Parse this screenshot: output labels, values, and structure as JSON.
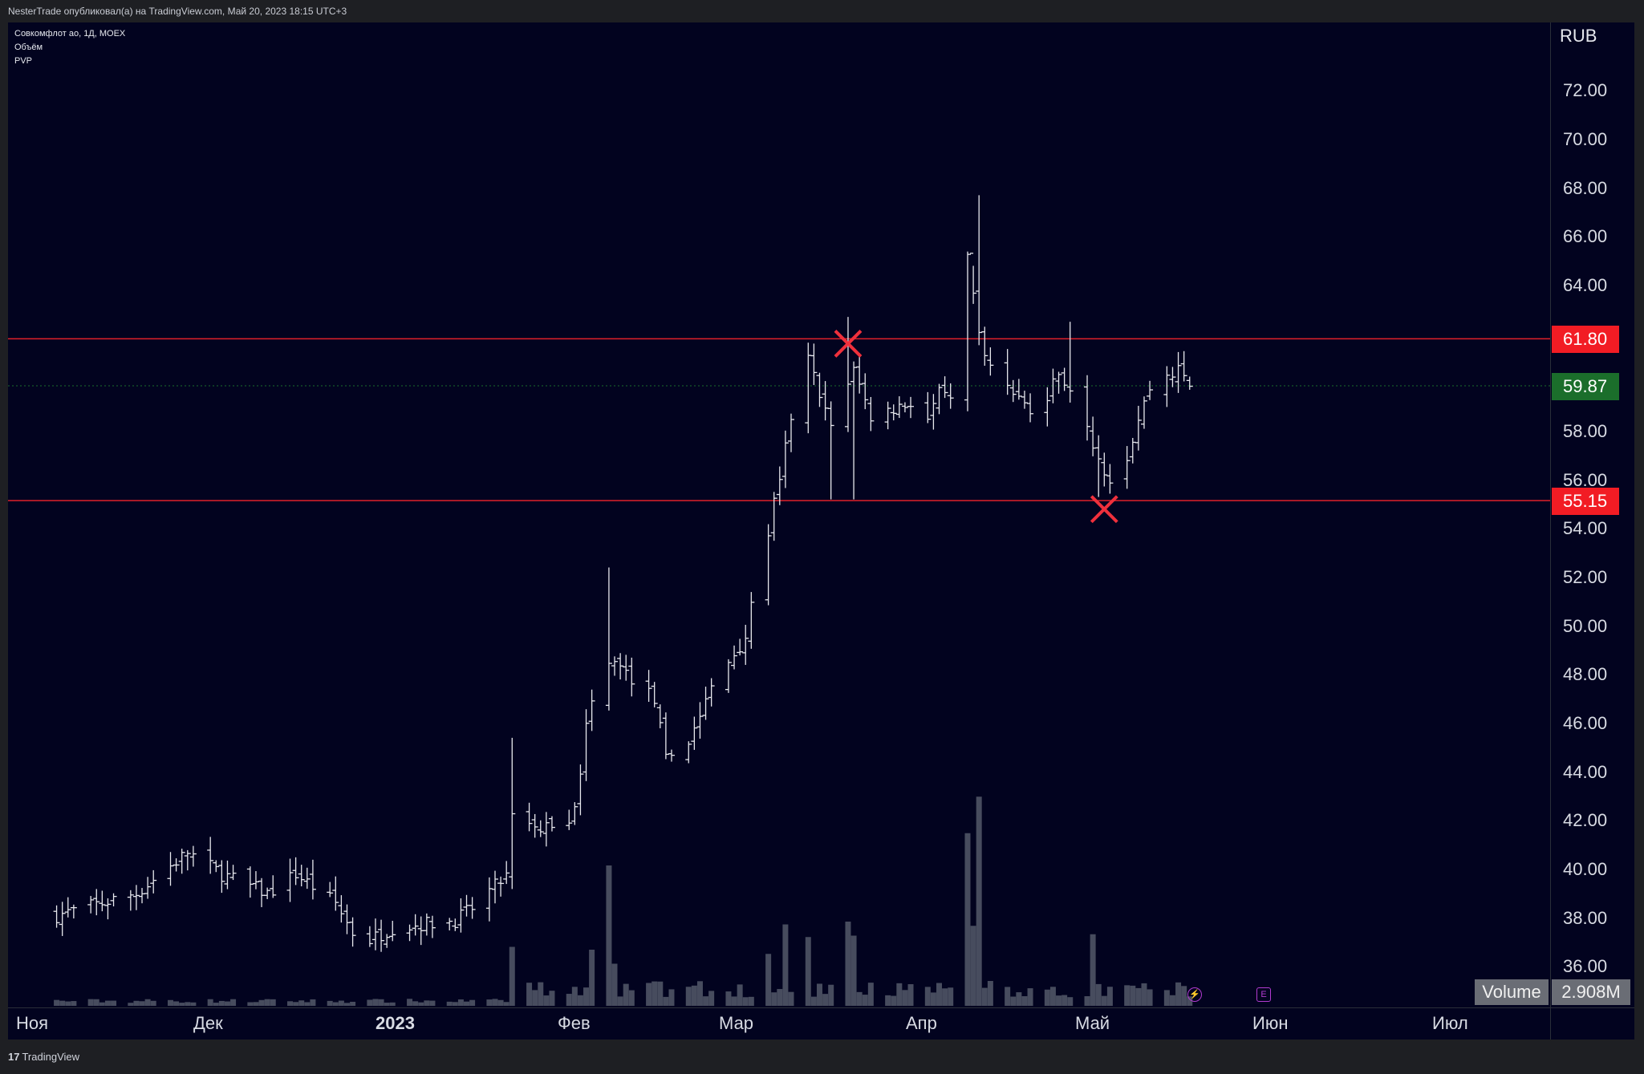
{
  "header": {
    "text": "NesterTrade опубликовал(а) на TradingView.com, Май 20, 2023 18:15 UTC+3"
  },
  "legend": {
    "symbol": "Совкомфлот ао, 1Д, MOEX",
    "indicator1": "Объём",
    "indicator2": "PVP"
  },
  "currency": "RUB",
  "price_ticks": [
    "72.00",
    "70.00",
    "68.00",
    "66.00",
    "64.00",
    "58.00",
    "56.00",
    "54.00",
    "52.00",
    "50.00",
    "48.00",
    "46.00",
    "44.00",
    "42.00",
    "40.00",
    "38.00",
    "36.00"
  ],
  "price_tags": {
    "resistance": "61.80",
    "last": "59.87",
    "support": "55.15"
  },
  "time_labels": [
    "Ноя",
    "Дек",
    "2023",
    "Фев",
    "Мар",
    "Апр",
    "Май",
    "Июн",
    "Июл"
  ],
  "volume": {
    "label": "Volume",
    "value": "2.908M"
  },
  "events": {
    "lightning": "⚡",
    "earnings": "E"
  },
  "footer": {
    "brand": "TradingView",
    "logo": "17"
  },
  "colors": {
    "background": "#02031f",
    "bars": "#e8e9ee",
    "volume": "#474c5e",
    "level_line": "#e0202a",
    "marker": "#f0303c",
    "last_tag": "#1b6e2b",
    "level_tag": "#f21c24"
  },
  "chart_data": {
    "type": "ohlc",
    "symbol": "Совкомфлот ао",
    "interval": "1Д",
    "exchange": "MOEX",
    "y_unit": "RUB",
    "ylim": [
      35.3,
      73.2
    ],
    "grid": false,
    "x_ticks": [
      "Ноя",
      "Дек",
      "2023",
      "Фев",
      "Мар",
      "Апр",
      "Май",
      "Июн",
      "Июл"
    ],
    "horizontal_levels": [
      61.8,
      55.15
    ],
    "last_price": 59.87,
    "markers": [
      {
        "type": "cross",
        "date": "2023-03-20",
        "price": 61.6
      },
      {
        "type": "cross",
        "date": "2023-05-04",
        "price": 54.8
      }
    ],
    "anchors": [
      [
        "2022-11-01",
        38.1
      ],
      [
        "2022-11-15",
        39.0
      ],
      [
        "2022-11-24",
        40.7
      ],
      [
        "2022-11-30",
        39.8
      ],
      [
        "2022-12-08",
        39.0
      ],
      [
        "2022-12-13",
        39.8
      ],
      [
        "2022-12-20",
        38.6
      ],
      [
        "2022-12-23",
        37.4
      ],
      [
        "2022-12-26",
        37.1
      ],
      [
        "2022-12-30",
        37.6
      ],
      [
        "2023-01-10",
        37.9
      ],
      [
        "2023-01-13",
        38.4
      ],
      [
        "2023-01-16",
        39.1
      ],
      [
        "2023-01-19",
        39.7
      ],
      [
        "2023-01-20",
        42.1
      ],
      [
        "2023-01-25",
        41.6
      ],
      [
        "2023-01-31",
        42.3
      ],
      [
        "2023-02-02",
        46.1
      ],
      [
        "2023-02-06",
        48.7
      ],
      [
        "2023-02-14",
        47.0
      ],
      [
        "2023-02-16",
        44.5
      ],
      [
        "2023-02-20",
        45.3
      ],
      [
        "2023-02-24",
        47.4
      ],
      [
        "2023-03-02",
        49.6
      ],
      [
        "2023-03-06",
        53.9
      ],
      [
        "2023-03-09",
        57.3
      ],
      [
        "2023-03-13",
        60.9
      ],
      [
        "2023-03-17",
        58.2
      ],
      [
        "2023-03-21",
        60.5
      ],
      [
        "2023-03-24",
        58.6
      ],
      [
        "2023-03-31",
        59.2
      ],
      [
        "2023-04-03",
        58.5
      ],
      [
        "2023-04-05",
        59.5
      ],
      [
        "2023-04-07",
        59.2
      ],
      [
        "2023-04-10",
        65.0
      ],
      [
        "2023-04-13",
        61.0
      ],
      [
        "2023-04-17",
        60.0
      ],
      [
        "2023-04-21",
        58.8
      ],
      [
        "2023-04-24",
        59.3
      ],
      [
        "2023-04-26",
        60.6
      ],
      [
        "2023-04-28",
        59.5
      ],
      [
        "2023-05-03",
        57.0
      ],
      [
        "2023-05-05",
        56.0
      ],
      [
        "2023-05-08",
        57.0
      ],
      [
        "2023-05-10",
        58.5
      ],
      [
        "2023-05-12",
        59.8
      ],
      [
        "2023-05-15",
        60.3
      ],
      [
        "2023-05-17",
        60.5
      ],
      [
        "2023-05-19",
        59.87
      ]
    ],
    "spikes": [
      {
        "date": "2023-01-20",
        "high": 45.4
      },
      {
        "date": "2023-02-06",
        "high": 52.4
      },
      {
        "date": "2023-03-17",
        "low": 55.2
      },
      {
        "date": "2023-03-20",
        "high": 62.7
      },
      {
        "date": "2023-03-21",
        "low": 55.2
      },
      {
        "date": "2023-04-11",
        "high": 64.8
      },
      {
        "date": "2023-04-12",
        "high": 67.7
      },
      {
        "date": "2023-04-28",
        "high": 62.5
      },
      {
        "date": "2023-05-03",
        "low": 55.3
      },
      {
        "date": "2023-12-26",
        "low": 35.6
      }
    ],
    "volume_peaks": [
      {
        "date": "2023-01-20",
        "value": 0.42
      },
      {
        "date": "2023-02-03",
        "value": 0.4
      },
      {
        "date": "2023-02-06",
        "value": 1.0
      },
      {
        "date": "2023-02-07",
        "value": 0.3
      },
      {
        "date": "2023-03-06",
        "value": 0.37
      },
      {
        "date": "2023-03-09",
        "value": 0.58
      },
      {
        "date": "2023-03-13",
        "value": 0.49
      },
      {
        "date": "2023-03-20",
        "value": 0.6
      },
      {
        "date": "2023-03-21",
        "value": 0.5
      },
      {
        "date": "2023-04-10",
        "value": 1.23
      },
      {
        "date": "2023-04-11",
        "value": 0.57
      },
      {
        "date": "2023-04-12",
        "value": 1.49
      },
      {
        "date": "2023-05-02",
        "value": 0.51
      }
    ]
  }
}
